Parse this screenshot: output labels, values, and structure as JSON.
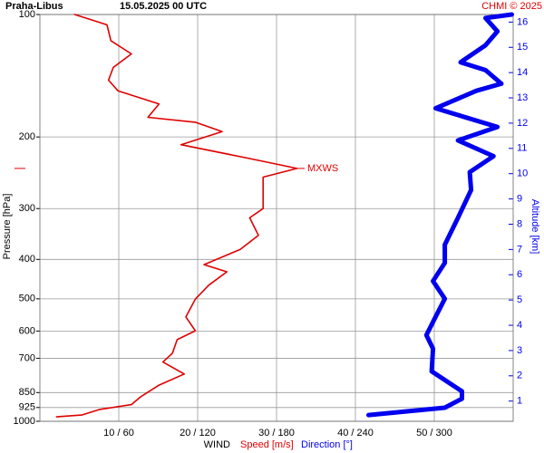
{
  "chart_data": {
    "type": "line",
    "station": "Praha-Libus",
    "title": "15.05.2025 00 UTC",
    "credit": "CHMI © 2025",
    "x_label": "WIND",
    "y_label": "Pressure [hPa]",
    "y2_label": "Altitude [km]",
    "y_log": true,
    "grid": true,
    "xlim": [
      0,
      60
    ],
    "x2lim": [
      0,
      360
    ],
    "ylim": [
      1000,
      100
    ],
    "y2lim": [
      0.2,
      16.3
    ],
    "xticks": [
      {
        "value": 10,
        "label": "10 / 60"
      },
      {
        "value": 20,
        "label": "20 / 120"
      },
      {
        "value": 30,
        "label": "30 / 180"
      },
      {
        "value": 40,
        "label": "40 / 240"
      },
      {
        "value": 50,
        "label": "50 / 300"
      }
    ],
    "yticks": [
      100,
      200,
      300,
      400,
      500,
      600,
      700,
      850,
      925,
      1000
    ],
    "y2ticks": [
      1,
      2,
      3,
      4,
      5,
      6,
      7,
      8,
      9,
      10,
      11,
      12,
      13,
      14,
      15,
      16
    ],
    "mxws": {
      "label": "MXWS",
      "pressure": 239
    },
    "series": [
      {
        "name": "Speed [m/s]",
        "color": "#e00000",
        "x": [
          4.4,
          8.5,
          9.0,
          11.6,
          9.3,
          8.7,
          9.9,
          15.1,
          13.7,
          19.7,
          23.1,
          17.9,
          26.6,
          32.6,
          28.3,
          28.3,
          28.3,
          26.6,
          27.7,
          25.4,
          20.8,
          23.7,
          21.4,
          19.7,
          18.5,
          19.7,
          17.4,
          16.8,
          15.6,
          18.3,
          15.1,
          12.8,
          11.6,
          7.6,
          5.3,
          2.1
        ],
        "y": [
          100,
          106,
          116,
          125,
          135,
          145,
          154,
          166,
          179,
          184,
          194,
          209,
          226,
          239,
          251,
          277,
          300,
          316,
          349,
          378,
          412,
          429,
          463,
          501,
          554,
          599,
          630,
          680,
          715,
          765,
          815,
          870,
          910,
          935,
          965,
          975
        ]
      },
      {
        "name": "Direction [°]",
        "color": "#0000ee",
        "axis": "x2",
        "x": [
          359,
          339,
          348,
          339,
          320,
          339,
          351,
          332,
          301,
          348,
          318,
          345,
          327,
          328,
          318,
          308,
          308,
          299,
          308,
          301,
          294,
          299,
          298,
          321,
          321,
          308,
          250
        ],
        "y": [
          100,
          102,
          110,
          119,
          131,
          137,
          148,
          154,
          170,
          189,
          204,
          223,
          244,
          270,
          316,
          368,
          408,
          452,
          500,
          554,
          614,
          663,
          754,
          844,
          880,
          926,
          965
        ]
      }
    ]
  }
}
